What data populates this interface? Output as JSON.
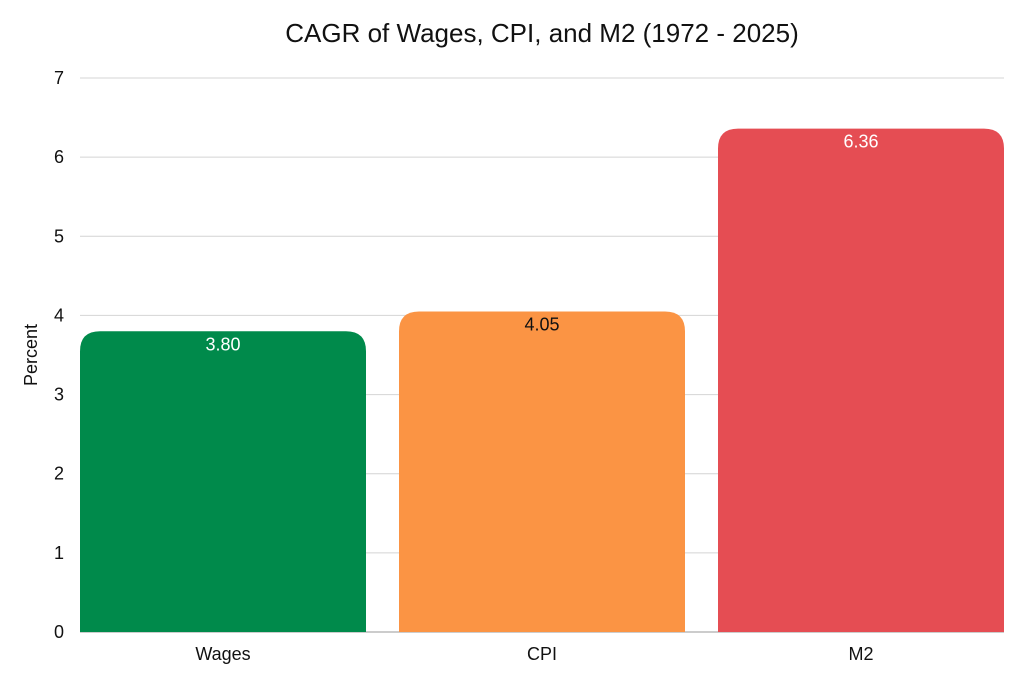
{
  "chart_data": {
    "type": "bar",
    "title": "CAGR of Wages, CPI, and M2 (1972 - 2025)",
    "xlabel": "",
    "ylabel": "Percent",
    "ylim": [
      0,
      7
    ],
    "yticks": [
      "0",
      "1",
      "2",
      "3",
      "4",
      "5",
      "6",
      "7"
    ],
    "grid": true,
    "categories": [
      "Wages",
      "CPI",
      "M2"
    ],
    "values": [
      3.8,
      4.05,
      6.36
    ],
    "data_labels": [
      "3.80",
      "4.05",
      "6.36"
    ],
    "colors": [
      "#008a4b",
      "#fb9444",
      "#e54d53"
    ],
    "label_colors": [
      "#ffffff",
      "#111111",
      "#ffffff"
    ]
  }
}
